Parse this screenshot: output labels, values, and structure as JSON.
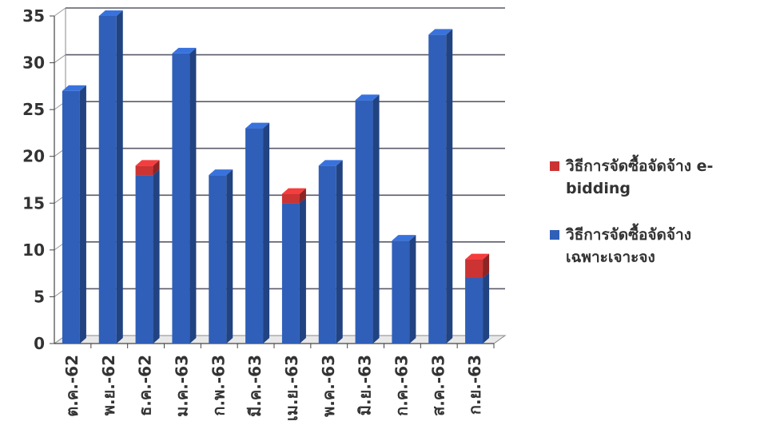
{
  "chart_data": {
    "type": "bar",
    "stacked": true,
    "categories": [
      "ต.ค.-62",
      "พ.ย.-62",
      "ธ.ค.-62",
      "ม.ค.-63",
      "ก.พ.-63",
      "มี.ค.-63",
      "เม.ย.-63",
      "พ.ค.-63",
      "มิ.ย.-63",
      "ก.ค.-63",
      "ส.ค.-63",
      "ก.ย.-63"
    ],
    "series": [
      {
        "name": "วิธีการจัดซื้อจัดจ้างเฉพาะเจาะจง",
        "legend_lines": [
          "วิธีการจัดซื้อจัดจ้าง",
          "เฉพาะเจาะจง"
        ],
        "color": "#2f5fb8",
        "values": [
          27,
          35,
          18,
          31,
          18,
          23,
          15,
          19,
          26,
          11,
          33,
          7
        ]
      },
      {
        "name": "วิธีการจัดซื้อจัดจ้าง e-bidding",
        "legend_lines": [
          "วิธีการจัดซื้อจัดจ้าง e-",
          "bidding"
        ],
        "color": "#cc3333",
        "values": [
          0,
          0,
          1,
          0,
          0,
          0,
          1,
          0,
          0,
          0,
          0,
          2
        ]
      }
    ],
    "y_ticks": [
      "0",
      "5",
      "10",
      "15",
      "20",
      "25",
      "30",
      "35"
    ],
    "ylim": [
      0,
      35
    ],
    "grid": true,
    "legend_position": "right"
  }
}
